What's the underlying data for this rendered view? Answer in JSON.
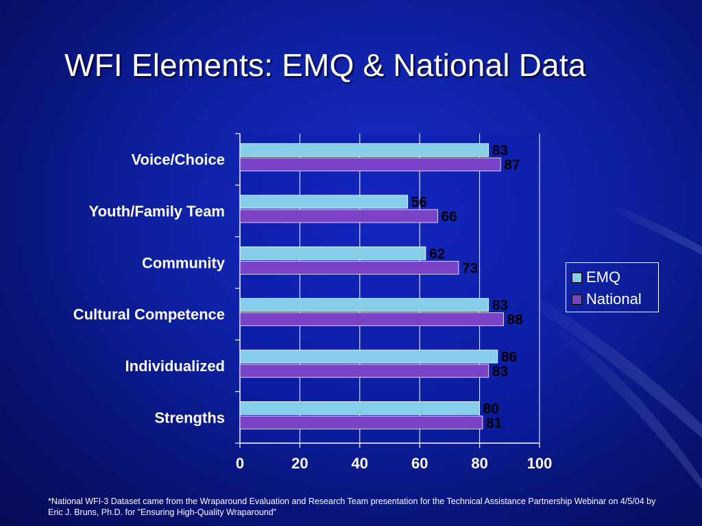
{
  "slide": {
    "title": "WFI Elements: EMQ & National Data",
    "footnote": "*National WFI-3 Dataset came from the Wraparound Evaluation and Research Team presentation for the Technical Assistance Partnership Webinar on 4/5/04 by Eric J. Bruns, Ph.D. for \"Ensuring High-Quality Wraparound\""
  },
  "legend": {
    "emq": "EMQ",
    "national": "National"
  },
  "chart_data": {
    "type": "bar",
    "orientation": "horizontal",
    "categories": [
      "Voice/Choice",
      "Youth/Family Team",
      "Community",
      "Cultural Competence",
      "Individualized",
      "Strengths"
    ],
    "series": [
      {
        "name": "EMQ",
        "values": [
          83,
          56,
          62,
          83,
          86,
          80
        ],
        "color": "#87CEEB"
      },
      {
        "name": "National",
        "values": [
          87,
          66,
          73,
          88,
          83,
          81
        ],
        "color": "#7B44C8"
      }
    ],
    "xlim": [
      0,
      100
    ],
    "xticks": [
      0,
      20,
      40,
      60,
      80,
      100
    ],
    "xlabel": "",
    "ylabel": "",
    "grid": true,
    "legend_position": "right",
    "data_labels": true
  }
}
